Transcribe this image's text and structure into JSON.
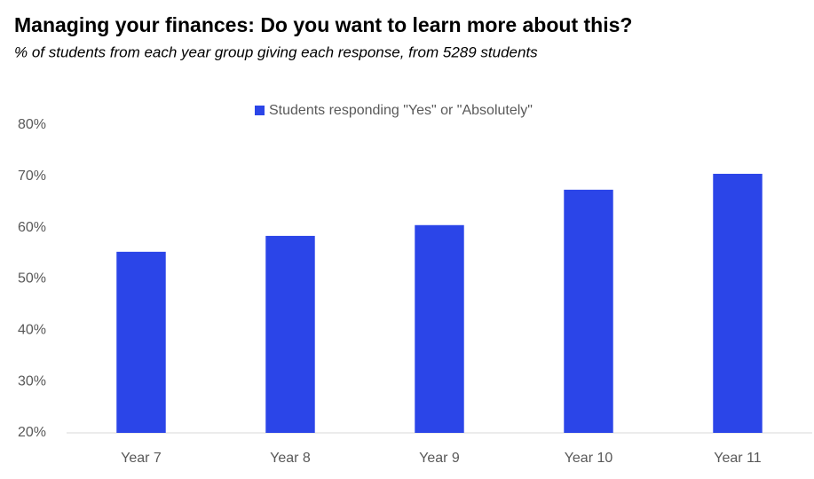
{
  "chart_data": {
    "type": "bar",
    "title": "Managing your finances: Do you want to learn more about this?",
    "subtitle": "% of students from each year group giving each response, from 5289 students",
    "categories": [
      "Year 7",
      "Year 8",
      "Year 9",
      "Year 10",
      "Year 11"
    ],
    "series": [
      {
        "name": "Students responding \"Yes\" or \"Absolutely\"",
        "color": "#2b45e8",
        "values": [
          55.3,
          58.4,
          60.5,
          67.4,
          70.5
        ]
      }
    ],
    "ylim": [
      20,
      80
    ],
    "yticks": [
      {
        "value": 20,
        "label": "20%"
      },
      {
        "value": 30,
        "label": "30%"
      },
      {
        "value": 40,
        "label": "40%"
      },
      {
        "value": 50,
        "label": "50%"
      },
      {
        "value": 60,
        "label": "60%"
      },
      {
        "value": 70,
        "label": "70%"
      },
      {
        "value": 80,
        "label": "80%"
      }
    ],
    "grid": false,
    "legend": "top"
  }
}
